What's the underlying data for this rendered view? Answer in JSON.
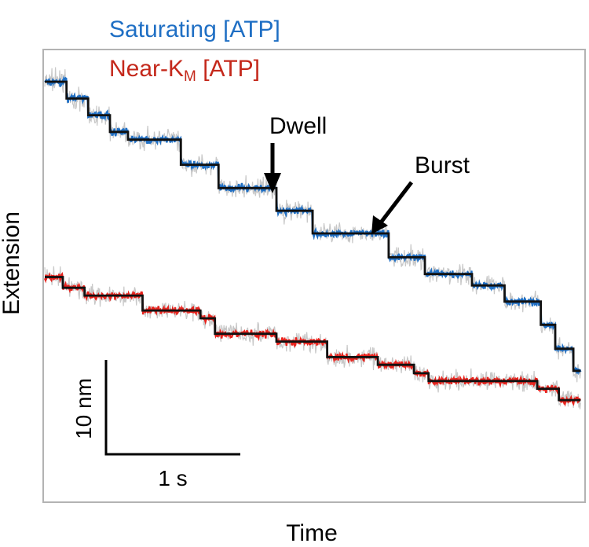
{
  "chart_data": {
    "type": "line",
    "xlabel": "Time",
    "ylabel": "Extension",
    "grid": false,
    "legend": {
      "placement": "top-left"
    },
    "series": [
      {
        "name": "Saturating [ATP]",
        "color": "#1f6fc4",
        "steps": [
          {
            "x": 0.0,
            "y": 100.0
          },
          {
            "x": 0.3,
            "y": 97.2
          },
          {
            "x": 0.6,
            "y": 94.4
          },
          {
            "x": 0.9,
            "y": 91.6
          },
          {
            "x": 1.15,
            "y": 90.3
          },
          {
            "x": 1.88,
            "y": 86.1
          },
          {
            "x": 2.4,
            "y": 82.2
          },
          {
            "x": 3.2,
            "y": 78.4
          },
          {
            "x": 3.7,
            "y": 74.6
          },
          {
            "x": 4.75,
            "y": 70.6
          },
          {
            "x": 5.25,
            "y": 67.8
          },
          {
            "x": 5.9,
            "y": 65.9
          },
          {
            "x": 6.35,
            "y": 63.2
          },
          {
            "x": 6.85,
            "y": 59.3
          },
          {
            "x": 7.05,
            "y": 55.3
          },
          {
            "x": 7.3,
            "y": 51.6
          },
          {
            "x": 7.4,
            "y": 51.6
          }
        ]
      },
      {
        "name": "Near-K",
        "subscript": "M",
        "suffix": " [ATP]",
        "color": "#e8231d",
        "steps": [
          {
            "x": 0.0,
            "y": 67.3
          },
          {
            "x": 0.25,
            "y": 65.5
          },
          {
            "x": 0.55,
            "y": 64.2
          },
          {
            "x": 1.35,
            "y": 61.7
          },
          {
            "x": 2.15,
            "y": 60.4
          },
          {
            "x": 2.35,
            "y": 57.8
          },
          {
            "x": 3.2,
            "y": 56.5
          },
          {
            "x": 3.9,
            "y": 53.9
          },
          {
            "x": 4.6,
            "y": 52.6
          },
          {
            "x": 5.1,
            "y": 51.2
          },
          {
            "x": 5.3,
            "y": 49.9
          },
          {
            "x": 6.8,
            "y": 48.6
          },
          {
            "x": 7.1,
            "y": 46.7
          },
          {
            "x": 7.4,
            "y": 46.7
          }
        ]
      }
    ],
    "annotations": [
      {
        "label": "Dwell",
        "series": 0,
        "x": 3.2
      },
      {
        "label": "Burst",
        "series": 0,
        "x": 4.6
      }
    ],
    "scale_bar": {
      "x_label": "1 s",
      "y_label": "10 nm",
      "x_value": 1,
      "y_value": 10
    }
  }
}
